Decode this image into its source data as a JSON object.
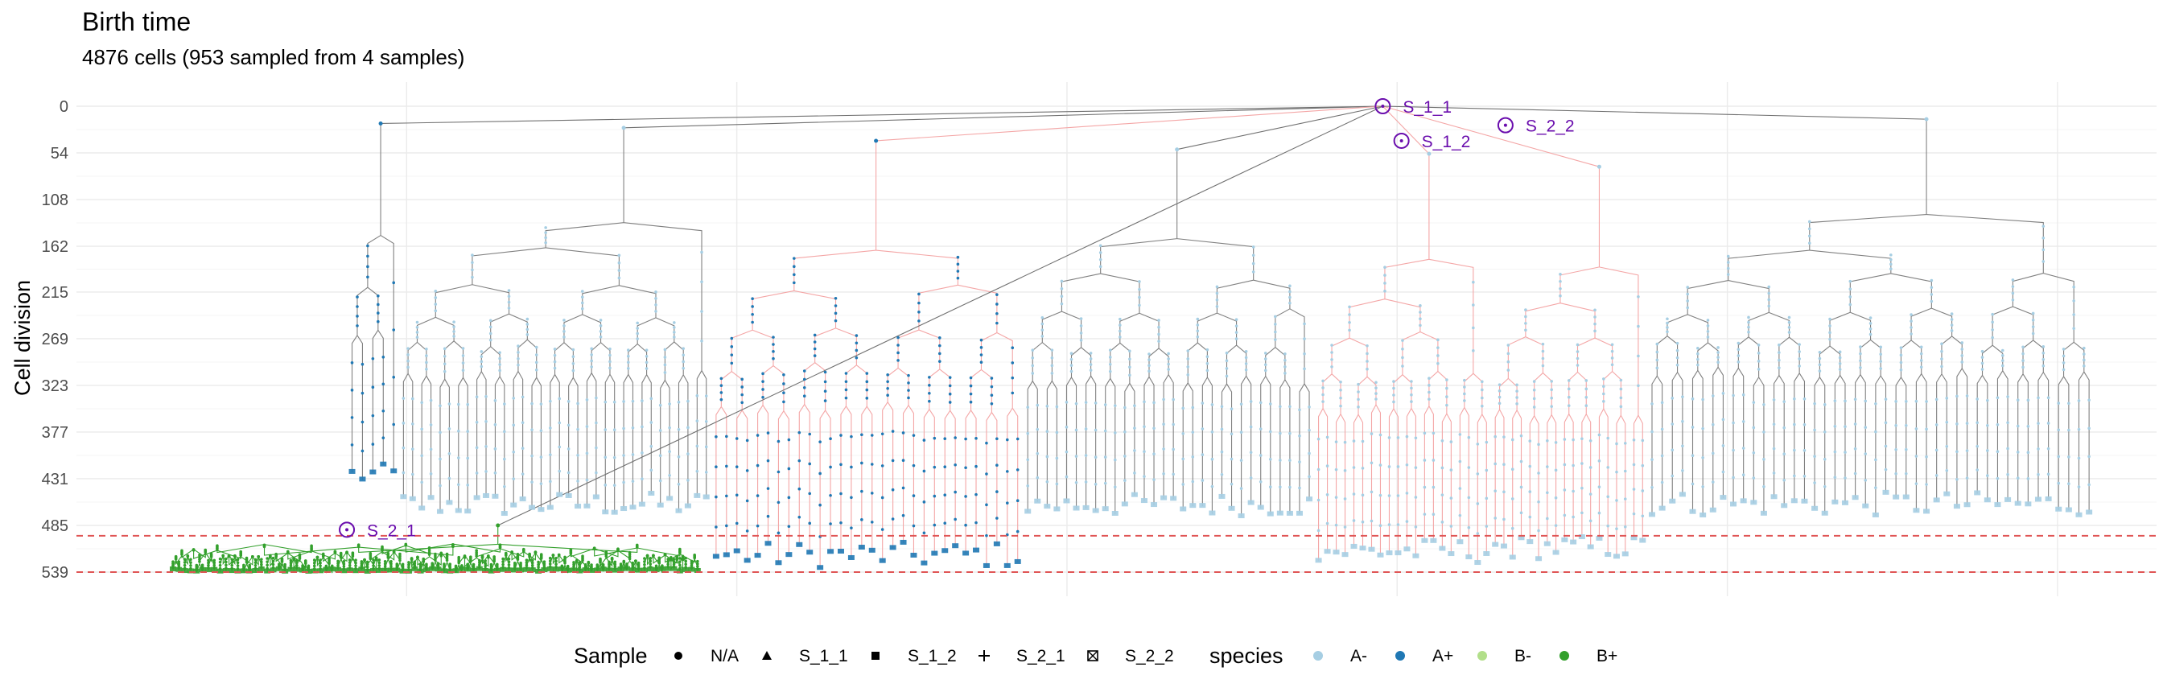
{
  "chart_data": {
    "type": "tree",
    "title": "Birth time",
    "subtitle": "4876 cells (953 sampled from 4 samples)",
    "ylabel": "Cell division",
    "xlabel": "",
    "y_ticks": [
      0,
      54,
      108,
      162,
      215,
      269,
      323,
      377,
      431,
      485,
      539
    ],
    "ylim": [
      0,
      539
    ],
    "y_reversed": true,
    "grid": true,
    "reference_lines": [
      {
        "y": 497,
        "color": "#e05555",
        "style": "dashed"
      },
      {
        "y": 539,
        "color": "#e05555",
        "style": "dashed"
      }
    ],
    "sample_annotations": [
      {
        "label": "S_1_1",
        "x": 0.628,
        "y": 0
      },
      {
        "label": "S_2_2",
        "x": 0.687,
        "y": 22
      },
      {
        "label": "S_1_2",
        "x": 0.637,
        "y": 40
      },
      {
        "label": "S_2_1",
        "x": 0.13,
        "y": 490
      }
    ],
    "legend_sample": {
      "title": "Sample",
      "items": [
        {
          "label": "N/A",
          "shape": "circle"
        },
        {
          "label": "S_1_1",
          "shape": "triangle"
        },
        {
          "label": "S_1_2",
          "shape": "square"
        },
        {
          "label": "S_2_1",
          "shape": "plus"
        },
        {
          "label": "S_2_2",
          "shape": "boxed-x"
        }
      ]
    },
    "legend_species": {
      "title": "species",
      "items": [
        {
          "label": "A-",
          "color": "#a6cee3"
        },
        {
          "label": "A+",
          "color": "#1f78b4"
        },
        {
          "label": "B-",
          "color": "#b2df8a"
        },
        {
          "label": "B+",
          "color": "#33a02c"
        }
      ]
    },
    "legend_placement": "bottom",
    "clades": [
      {
        "x_start": 0.13,
        "x_end": 0.155,
        "top": 20,
        "bottom": 440,
        "color": "#1f78b4",
        "edge": "#808080",
        "leaves": 5
      },
      {
        "x_start": 0.155,
        "x_end": 0.305,
        "top": 25,
        "bottom": 475,
        "color": "#a6cee3",
        "edge": "#808080",
        "leaves": 34
      },
      {
        "x_start": 0.305,
        "x_end": 0.455,
        "top": 40,
        "bottom": 535,
        "color": "#1f78b4",
        "edge": "#f4a6a6",
        "leaves": 30
      },
      {
        "x_start": 0.455,
        "x_end": 0.595,
        "top": 50,
        "bottom": 475,
        "color": "#a6cee3",
        "edge": "#808080",
        "leaves": 30
      },
      {
        "x_start": 0.595,
        "x_end": 0.68,
        "top": 55,
        "bottom": 530,
        "color": "#a6cee3",
        "edge": "#f4a6a6",
        "leaves": 20
      },
      {
        "x_start": 0.68,
        "x_end": 0.755,
        "top": 70,
        "bottom": 525,
        "color": "#a6cee3",
        "edge": "#f4a6a6",
        "leaves": 18
      },
      {
        "x_start": 0.755,
        "x_end": 0.97,
        "top": 15,
        "bottom": 475,
        "color": "#a6cee3",
        "edge": "#808080",
        "leaves": 44
      },
      {
        "x_start": 0.045,
        "x_end": 0.3,
        "top": 485,
        "bottom": 539,
        "color": "#33a02c",
        "edge": "#33a02c",
        "leaves": 90
      }
    ]
  }
}
